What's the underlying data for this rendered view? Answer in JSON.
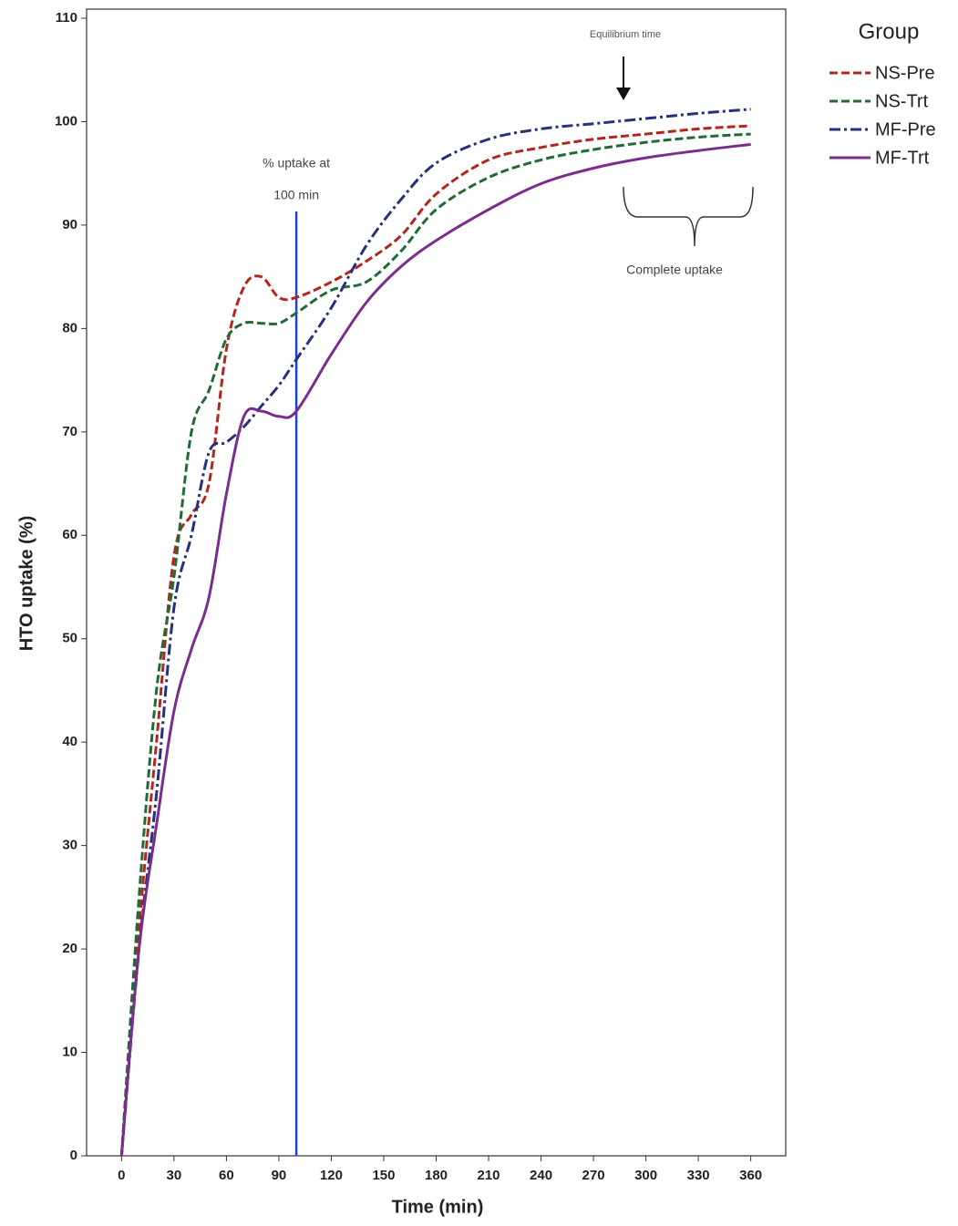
{
  "chart_data": {
    "type": "line",
    "x_label": "Time (min)",
    "y_label": "HTO uptake (%)",
    "legend_title": "Group",
    "legend": "outside-right",
    "xlim": [
      -20,
      380
    ],
    "ylim": [
      0,
      110
    ],
    "xticks": [
      0,
      30,
      60,
      90,
      120,
      150,
      180,
      210,
      240,
      270,
      300,
      330,
      360
    ],
    "yticks": [
      0,
      10,
      20,
      30,
      40,
      50,
      60,
      70,
      80,
      90,
      100,
      110
    ],
    "x": [
      0,
      10,
      20,
      30,
      40,
      50,
      60,
      70,
      80,
      90,
      100,
      120,
      140,
      160,
      180,
      210,
      240,
      270,
      300,
      330,
      360
    ],
    "series": [
      {
        "name": "NS-Pre",
        "color": "#b3261e",
        "dash": "dashed",
        "values": [
          0,
          22,
          40,
          58,
          62,
          65,
          78,
          84,
          85,
          83,
          83,
          84.5,
          86.5,
          89,
          93,
          96.3,
          97.5,
          98.3,
          98.8,
          99.3,
          99.6
        ]
      },
      {
        "name": "NS-Trt",
        "color": "#1f6b35",
        "dash": "dashed",
        "values": [
          0,
          25,
          45,
          56,
          70,
          74,
          79,
          80.5,
          80.5,
          80.5,
          81.5,
          83.7,
          84.5,
          87.5,
          91.5,
          94.6,
          96.3,
          97.3,
          98,
          98.5,
          98.8
        ]
      },
      {
        "name": "MF-Pre",
        "color": "#27307a",
        "dash": "dashdot",
        "values": [
          0,
          20,
          35,
          53,
          60,
          68,
          69,
          70.5,
          72.5,
          74.5,
          77,
          82,
          88,
          92.5,
          96,
          98.3,
          99.3,
          99.8,
          100.3,
          100.8,
          101.2
        ]
      },
      {
        "name": "MF-Trt",
        "color": "#7b2d8e",
        "dash": "solid",
        "values": [
          0,
          20,
          32,
          43,
          49,
          54,
          64,
          71.5,
          72,
          71.5,
          72,
          77.5,
          82.5,
          86,
          88.5,
          91.5,
          94,
          95.5,
          96.5,
          97.2,
          97.8
        ]
      }
    ],
    "reference_line": {
      "x": 100,
      "color": "#1f3fd6",
      "text": [
        "% uptake at",
        "100 min"
      ]
    },
    "annotations": {
      "equilibrium": "Equilibrium time",
      "complete": "Complete uptake"
    }
  }
}
